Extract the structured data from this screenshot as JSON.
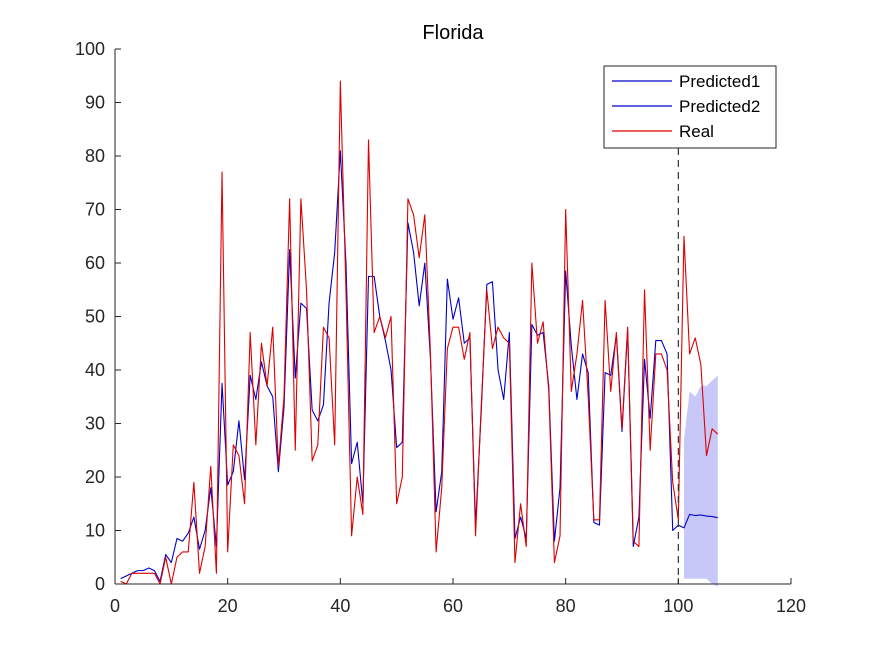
{
  "chart_data": {
    "type": "line",
    "title": "Florida",
    "xlabel": "",
    "ylabel": "",
    "xlim": [
      0,
      120
    ],
    "ylim": [
      0,
      100
    ],
    "xticks": [
      0,
      20,
      40,
      60,
      80,
      100,
      120
    ],
    "yticks": [
      0,
      10,
      20,
      30,
      40,
      50,
      60,
      70,
      80,
      90,
      100
    ],
    "grid": false,
    "legend_position": "top-right",
    "divider_x": 100,
    "series": [
      {
        "name": "Predicted1",
        "color": "#0000cc",
        "x": [
          1,
          2,
          3,
          4,
          5,
          6,
          7,
          8,
          9,
          10,
          11,
          12,
          13,
          14,
          15,
          16,
          17,
          18,
          19,
          20,
          21,
          22,
          23,
          24,
          25,
          26,
          27,
          28,
          29,
          30,
          31,
          32,
          33,
          34,
          35,
          36,
          37,
          38,
          39,
          40,
          41,
          42,
          43,
          44,
          45,
          46,
          47,
          48,
          49,
          50,
          51,
          52,
          53,
          54,
          55,
          56,
          57,
          58,
          59,
          60,
          61,
          62,
          63,
          64,
          65,
          66,
          67,
          68,
          69,
          70,
          71,
          72,
          73,
          74,
          75,
          76,
          77,
          78,
          79,
          80,
          81,
          82,
          83,
          84,
          85,
          86,
          87,
          88,
          89,
          90,
          91,
          92,
          93,
          94,
          95,
          96,
          97,
          98,
          99,
          100
        ],
        "y": [
          1,
          1.5,
          2,
          2.5,
          2.5,
          3,
          2.5,
          0.5,
          5.5,
          4,
          8.5,
          8,
          9.5,
          12.5,
          6.5,
          10,
          18,
          7,
          37.5,
          18.5,
          21,
          30.5,
          19.5,
          39,
          34.5,
          41.5,
          37,
          35,
          21,
          33,
          62.5,
          38.5,
          52.5,
          51.5,
          32.5,
          30.5,
          33.5,
          52.5,
          62,
          81,
          60,
          22.5,
          26.5,
          15,
          57.5,
          57.5,
          50,
          45.5,
          40,
          25.5,
          26.5,
          67.5,
          62,
          52,
          60,
          42,
          13.5,
          21,
          57,
          49.5,
          53.5,
          45,
          46,
          11,
          32,
          56,
          56.5,
          40,
          34.5,
          47,
          8.5,
          12.5,
          8.5,
          48.5,
          46.5,
          47,
          37,
          8,
          18,
          58.5,
          44.5,
          34.5,
          43,
          39.5,
          11.5,
          11,
          39.5,
          39,
          46.5,
          28.5,
          47.5,
          7,
          12.5,
          42,
          31,
          45.5,
          45.5,
          43,
          10,
          11
        ]
      },
      {
        "name": "Predicted2",
        "color": "#0000cc",
        "x": [
          100,
          101,
          102,
          103,
          104,
          105,
          106,
          107
        ],
        "y": [
          11,
          10.5,
          13,
          12.8,
          12.9,
          12.7,
          12.6,
          12.4
        ]
      },
      {
        "name": "Real",
        "color": "#dd0000",
        "x": [
          1,
          2,
          3,
          4,
          5,
          6,
          7,
          8,
          9,
          10,
          11,
          12,
          13,
          14,
          15,
          16,
          17,
          18,
          19,
          20,
          21,
          22,
          23,
          24,
          25,
          26,
          27,
          28,
          29,
          30,
          31,
          32,
          33,
          34,
          35,
          36,
          37,
          38,
          39,
          40,
          41,
          42,
          43,
          44,
          45,
          46,
          47,
          48,
          49,
          50,
          51,
          52,
          53,
          54,
          55,
          56,
          57,
          58,
          59,
          60,
          61,
          62,
          63,
          64,
          65,
          66,
          67,
          68,
          69,
          70,
          71,
          72,
          73,
          74,
          75,
          76,
          77,
          78,
          79,
          80,
          81,
          82,
          83,
          84,
          85,
          86,
          87,
          88,
          89,
          90,
          91,
          92,
          93,
          94,
          95,
          96,
          97,
          98,
          99,
          100,
          101,
          102,
          103,
          104,
          105,
          106,
          107
        ],
        "y": [
          0.5,
          0,
          2,
          2,
          2,
          2,
          2,
          0,
          5,
          0,
          5,
          6,
          6,
          19,
          2,
          7,
          22,
          2,
          77,
          6,
          26,
          24,
          15,
          47,
          26,
          45,
          37,
          48,
          22,
          35,
          72,
          25,
          72,
          55,
          23,
          26,
          48,
          46,
          26,
          94,
          55,
          9,
          20,
          13,
          83,
          47,
          50,
          46,
          50,
          15,
          20,
          72,
          69,
          61,
          69,
          43,
          6,
          18,
          44,
          48,
          48,
          42,
          47,
          9,
          33,
          55,
          44,
          48,
          46,
          45,
          4,
          15,
          7,
          60,
          45,
          49,
          36,
          4,
          9,
          70,
          36,
          43,
          53,
          35,
          12,
          12,
          53,
          36,
          47,
          29,
          48,
          8,
          7,
          55,
          25,
          43,
          43,
          40,
          19,
          12,
          65,
          43,
          46,
          41,
          24,
          29,
          28
        ]
      }
    ],
    "confidence_band": {
      "color": "#c8c8f8",
      "x": [
        101,
        102,
        103,
        104,
        105,
        106,
        107
      ],
      "upper": [
        27,
        36,
        35,
        37,
        37,
        38,
        39
      ],
      "lower": [
        1,
        1,
        1,
        1,
        1,
        0,
        -0.5
      ]
    }
  }
}
